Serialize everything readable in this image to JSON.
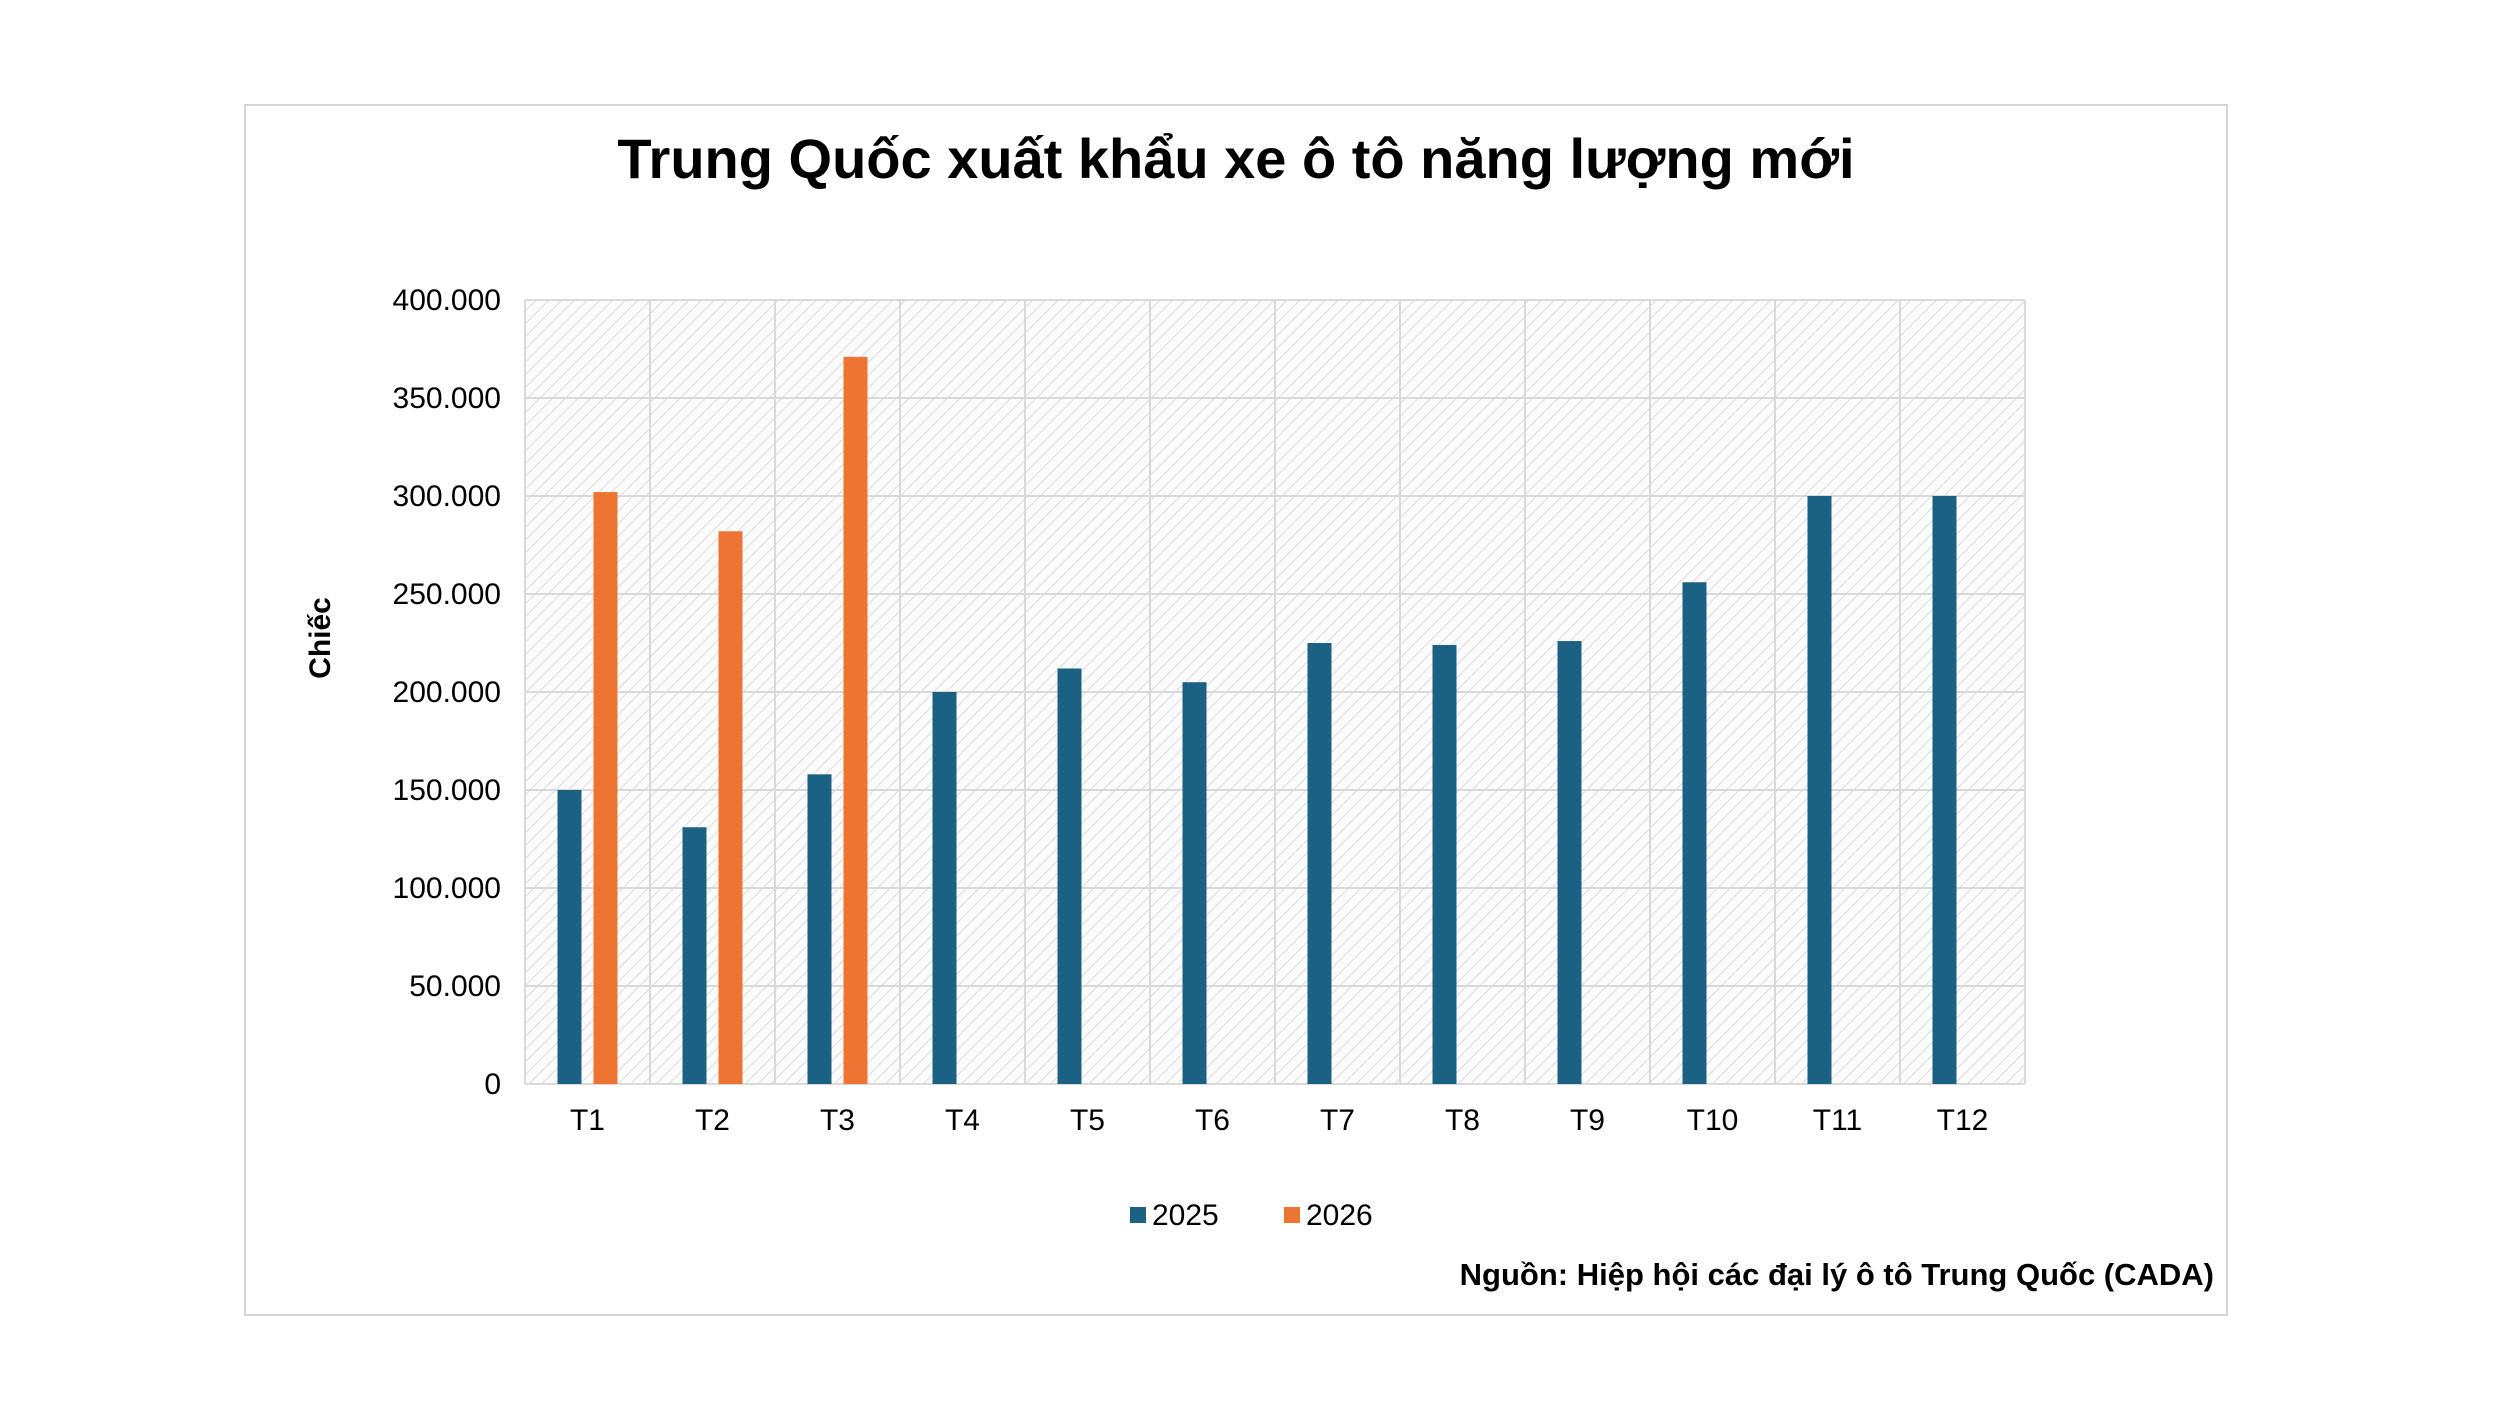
{
  "chart_data": {
    "type": "bar",
    "title": "Trung Quốc xuất khẩu xe ô tô năng lượng mới",
    "ylabel": "Chiếc",
    "xlabel": "",
    "ylim": [
      0,
      400000
    ],
    "yticks": [
      0,
      50000,
      100000,
      150000,
      200000,
      250000,
      300000,
      350000,
      400000
    ],
    "ytick_labels": [
      "0",
      "50.000",
      "100.000",
      "150.000",
      "200.000",
      "250.000",
      "300.000",
      "350.000",
      "400.000"
    ],
    "categories": [
      "T1",
      "T2",
      "T3",
      "T4",
      "T5",
      "T6",
      "T7",
      "T8",
      "T9",
      "T10",
      "T11",
      "T12"
    ],
    "series": [
      {
        "name": "2025",
        "color": "#1b6184",
        "values": [
          150000,
          131000,
          158000,
          200000,
          212000,
          205000,
          225000,
          224000,
          226000,
          256000,
          300000,
          300000
        ]
      },
      {
        "name": "2026",
        "color": "#ed7432",
        "values": [
          302000,
          282000,
          371000,
          null,
          null,
          null,
          null,
          null,
          null,
          null,
          null,
          null
        ]
      }
    ],
    "grid": true,
    "legend": "bottom",
    "source": "Nguồn: Hiệp hội các đại lý ô tô Trung Quốc (CADA)"
  }
}
